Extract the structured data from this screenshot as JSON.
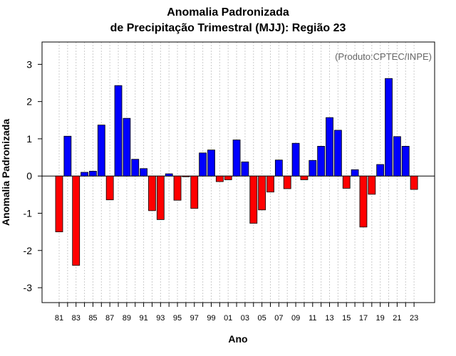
{
  "chart_data": {
    "type": "bar",
    "title": "Anomalia Padronizada",
    "subtitle": "de Precipitação Trimestral (MJJ): Região 23",
    "xlabel": "Ano",
    "ylabel": "Anomalia Padronizada",
    "credit": "(Produto:CPTEC/INPE)",
    "ylim": [
      -3.4,
      3.6
    ],
    "yticks": [
      -3,
      -2,
      -1,
      0,
      1,
      2,
      3
    ],
    "xtick_labels": [
      "81",
      "83",
      "85",
      "87",
      "89",
      "91",
      "93",
      "95",
      "97",
      "99",
      "01",
      "03",
      "05",
      "07",
      "09",
      "11",
      "13",
      "15",
      "17",
      "19",
      "21",
      "23"
    ],
    "categories": [
      "1981",
      "1982",
      "1983",
      "1984",
      "1985",
      "1986",
      "1987",
      "1988",
      "1989",
      "1990",
      "1991",
      "1992",
      "1993",
      "1994",
      "1995",
      "1996",
      "1997",
      "1998",
      "1999",
      "2000",
      "2001",
      "2002",
      "2003",
      "2004",
      "2005",
      "2006",
      "2007",
      "2008",
      "2009",
      "2010",
      "2011",
      "2012",
      "2013",
      "2014",
      "2015",
      "2016",
      "2017",
      "2018",
      "2019",
      "2020",
      "2021",
      "2022",
      "2023"
    ],
    "values": [
      -1.5,
      1.07,
      -2.4,
      0.1,
      0.13,
      1.37,
      -0.64,
      2.43,
      1.55,
      0.45,
      0.2,
      -0.93,
      -1.17,
      0.06,
      -0.65,
      -0.02,
      -0.87,
      0.62,
      0.7,
      -0.15,
      -0.1,
      0.97,
      0.38,
      -1.27,
      -0.91,
      -0.43,
      0.43,
      -0.34,
      0.88,
      -0.1,
      0.42,
      0.8,
      1.57,
      1.23,
      -0.33,
      0.17,
      -1.37,
      -0.49,
      0.31,
      2.62,
      1.06,
      0.8,
      -0.36
    ],
    "colors": {
      "positive": "#0000ff",
      "negative": "#ff0000"
    },
    "grid": true
  }
}
